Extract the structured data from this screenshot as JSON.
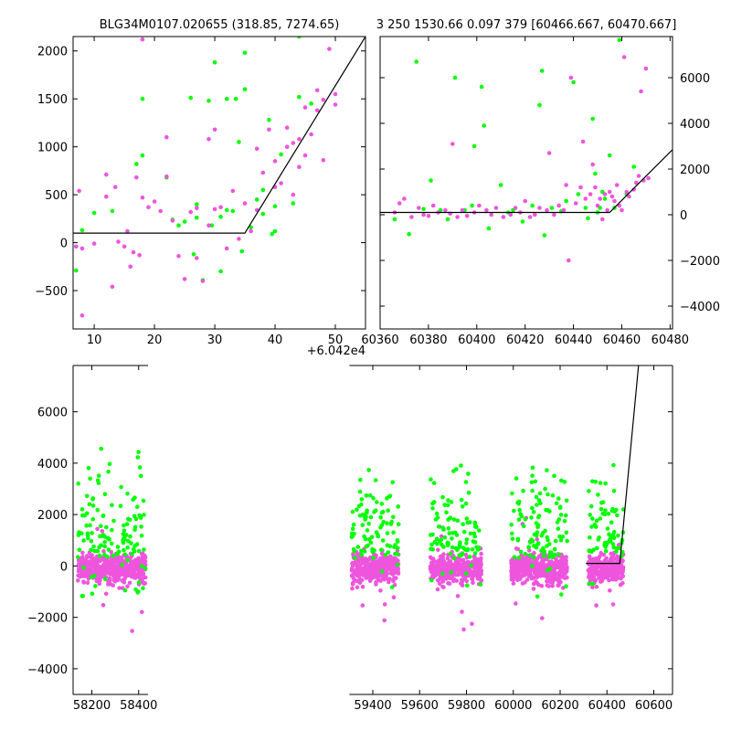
{
  "colors": {
    "green": "#00ff00",
    "magenta": "#ee55dd",
    "fit_line": "#000000"
  },
  "chart_data": [
    {
      "id": "top_left",
      "type": "scatter",
      "title": "BLG34M0107.020655 (318.85, 7274.65)",
      "xlim": [
        6.5,
        55
      ],
      "ylim": [
        -900,
        2150
      ],
      "x_offset_label": "+6.042e4",
      "xticks": [
        10,
        20,
        30,
        40,
        50
      ],
      "yticks": [
        -500,
        0,
        500,
        1000,
        1500,
        2000
      ],
      "series": [
        {
          "color": "green",
          "points": [
            [
              7,
              -290
            ],
            [
              8,
              130
            ],
            [
              10,
              310
            ],
            [
              13,
              330
            ],
            [
              17,
              820
            ],
            [
              18,
              910
            ],
            [
              18,
              1500
            ],
            [
              22,
              680
            ],
            [
              23,
              240
            ],
            [
              24,
              180
            ],
            [
              25,
              220
            ],
            [
              26,
              1510
            ],
            [
              26.5,
              -120
            ],
            [
              27,
              260
            ],
            [
              27,
              400
            ],
            [
              28,
              -390
            ],
            [
              29,
              1480
            ],
            [
              29.5,
              180
            ],
            [
              30,
              1880
            ],
            [
              31,
              270
            ],
            [
              31,
              -300
            ],
            [
              32,
              340
            ],
            [
              32,
              1500
            ],
            [
              33,
              330
            ],
            [
              33.5,
              1500
            ],
            [
              34,
              1050
            ],
            [
              34.5,
              -90
            ],
            [
              35,
              1600
            ],
            [
              35,
              1980
            ],
            [
              36,
              160
            ],
            [
              37,
              450
            ],
            [
              38,
              550
            ],
            [
              38,
              300
            ],
            [
              39,
              1280
            ],
            [
              39.5,
              90
            ],
            [
              40,
              380
            ],
            [
              40,
              120
            ],
            [
              41,
              920
            ],
            [
              43,
              410
            ],
            [
              44,
              1520
            ],
            [
              44,
              2150
            ],
            [
              46,
              1450
            ]
          ]
        },
        {
          "color": "magenta",
          "points": [
            [
              7,
              -40
            ],
            [
              7.5,
              540
            ],
            [
              8,
              -760
            ],
            [
              8,
              -60
            ],
            [
              10,
              -10
            ],
            [
              12,
              710
            ],
            [
              12,
              480
            ],
            [
              13,
              -460
            ],
            [
              13.5,
              580
            ],
            [
              14,
              10
            ],
            [
              15,
              -40
            ],
            [
              15.5,
              120
            ],
            [
              16,
              -250
            ],
            [
              16.5,
              -100
            ],
            [
              17,
              680
            ],
            [
              17.5,
              -130
            ],
            [
              18,
              2120
            ],
            [
              18,
              470
            ],
            [
              19,
              370
            ],
            [
              20,
              430
            ],
            [
              21,
              330
            ],
            [
              22,
              1100
            ],
            [
              22,
              690
            ],
            [
              23,
              230
            ],
            [
              24,
              -140
            ],
            [
              25,
              -380
            ],
            [
              26,
              320
            ],
            [
              27,
              360
            ],
            [
              27,
              -160
            ],
            [
              28,
              -400
            ],
            [
              29,
              180
            ],
            [
              29,
              1080
            ],
            [
              30,
              1180
            ],
            [
              30,
              350
            ],
            [
              31,
              370
            ],
            [
              32,
              -60
            ],
            [
              33,
              540
            ],
            [
              34,
              40
            ],
            [
              35,
              410
            ],
            [
              36,
              120
            ],
            [
              37,
              980
            ],
            [
              37,
              340
            ],
            [
              38,
              730
            ],
            [
              39,
              1180
            ],
            [
              40,
              580
            ],
            [
              40,
              850
            ],
            [
              41,
              620
            ],
            [
              42,
              1000
            ],
            [
              42,
              1200
            ],
            [
              43,
              1040
            ],
            [
              43,
              500
            ],
            [
              44,
              1080
            ],
            [
              44,
              790
            ],
            [
              45,
              1410
            ],
            [
              45,
              910
            ],
            [
              46,
              1130
            ],
            [
              47,
              1590
            ],
            [
              47,
              1380
            ],
            [
              48,
              1490
            ],
            [
              48,
              860
            ],
            [
              49,
              2020
            ],
            [
              50,
              1440
            ],
            [
              50,
              1550
            ]
          ]
        }
      ],
      "fit_line": [
        [
          6.5,
          100
        ],
        [
          35,
          100
        ],
        [
          55,
          2150
        ]
      ]
    },
    {
      "id": "top_right",
      "type": "scatter",
      "title": "3 250 1530.66 0.097 379 [60466.667, 60470.667]",
      "xlim": [
        60360,
        60481
      ],
      "ylim": [
        -5000,
        7800
      ],
      "xticks": [
        60360,
        60380,
        60400,
        60420,
        60440,
        60460,
        60480
      ],
      "yticks": [
        -4000,
        -2000,
        0,
        2000,
        4000,
        6000
      ],
      "series": [
        {
          "color": "green",
          "points": [
            [
              60366,
              -200
            ],
            [
              60372,
              -850
            ],
            [
              60375,
              6700
            ],
            [
              60378,
              250
            ],
            [
              60381,
              1500
            ],
            [
              60385,
              200
            ],
            [
              60388,
              -200
            ],
            [
              60391,
              6000
            ],
            [
              60395,
              200
            ],
            [
              60398,
              400
            ],
            [
              60399,
              3000
            ],
            [
              60402,
              5600
            ],
            [
              60403,
              3900
            ],
            [
              60405,
              -600
            ],
            [
              60410,
              1300
            ],
            [
              60413,
              100
            ],
            [
              60415,
              200
            ],
            [
              60419,
              -300
            ],
            [
              60423,
              400
            ],
            [
              60426,
              4800
            ],
            [
              60427,
              6300
            ],
            [
              60428,
              -900
            ],
            [
              60431,
              300
            ],
            [
              60435,
              150
            ],
            [
              60437,
              600
            ],
            [
              60440,
              5800
            ],
            [
              60442,
              900
            ],
            [
              60445,
              300
            ],
            [
              60446,
              -150
            ],
            [
              60448,
              4200
            ],
            [
              60449,
              1800
            ],
            [
              60450,
              100
            ],
            [
              60451,
              300
            ],
            [
              60452,
              1000
            ],
            [
              60453,
              700
            ],
            [
              60455,
              2600
            ],
            [
              60457,
              300
            ],
            [
              60459,
              7650
            ],
            [
              60462,
              900
            ],
            [
              60465,
              2100
            ]
          ]
        },
        {
          "color": "magenta",
          "points": [
            [
              60366,
              100
            ],
            [
              60368,
              500
            ],
            [
              60370,
              700
            ],
            [
              60373,
              -100
            ],
            [
              60376,
              300
            ],
            [
              60378,
              0
            ],
            [
              60380,
              -50
            ],
            [
              60382,
              400
            ],
            [
              60384,
              100
            ],
            [
              60387,
              200
            ],
            [
              60389,
              50
            ],
            [
              60390,
              3100
            ],
            [
              60392,
              -100
            ],
            [
              60394,
              200
            ],
            [
              60396,
              -50
            ],
            [
              60399,
              100
            ],
            [
              60401,
              400
            ],
            [
              60404,
              200
            ],
            [
              60406,
              0
            ],
            [
              60408,
              300
            ],
            [
              60411,
              -100
            ],
            [
              60414,
              0
            ],
            [
              60416,
              300
            ],
            [
              60418,
              100
            ],
            [
              60420,
              600
            ],
            [
              60422,
              -100
            ],
            [
              60424,
              0
            ],
            [
              60426,
              300
            ],
            [
              60429,
              200
            ],
            [
              60430,
              2700
            ],
            [
              60432,
              0
            ],
            [
              60434,
              400
            ],
            [
              60436,
              200
            ],
            [
              60437,
              1300
            ],
            [
              60438,
              -2000
            ],
            [
              60439,
              6000
            ],
            [
              60441,
              500
            ],
            [
              60443,
              1200
            ],
            [
              60444,
              3200
            ],
            [
              60445,
              700
            ],
            [
              60447,
              900
            ],
            [
              60448,
              2200
            ],
            [
              60449,
              1200
            ],
            [
              60450,
              400
            ],
            [
              60451,
              700
            ],
            [
              60452,
              -200
            ],
            [
              60453,
              900
            ],
            [
              60454,
              200
            ],
            [
              60455,
              1000
            ],
            [
              60456,
              800
            ],
            [
              60457,
              600
            ],
            [
              60458,
              1300
            ],
            [
              60459,
              400
            ],
            [
              60460,
              200
            ],
            [
              60461,
              6900
            ],
            [
              60462,
              1000
            ],
            [
              60463,
              800
            ],
            [
              60465,
              1100
            ],
            [
              60466,
              1400
            ],
            [
              60467,
              1700
            ],
            [
              60468,
              5400
            ],
            [
              60469,
              1500
            ],
            [
              60470,
              6400
            ],
            [
              60471,
              1600
            ]
          ]
        }
      ],
      "fit_line": [
        [
          60360,
          100
        ],
        [
          60455,
          100
        ],
        [
          60481,
          2850
        ]
      ]
    },
    {
      "id": "bottom",
      "type": "scatter",
      "title": "",
      "xlim": [
        58120,
        60680
      ],
      "ylim": [
        -5000,
        7800
      ],
      "xticks": [
        58200,
        58400,
        59400,
        59600,
        59800,
        60000,
        60200,
        60400,
        60600
      ],
      "yticks": [
        -4000,
        -2000,
        0,
        2000,
        4000,
        6000
      ],
      "gap": [
        58440,
        59300
      ],
      "seasons": [
        [
          58140,
          58430
        ],
        [
          59310,
          59510
        ],
        [
          59645,
          59865
        ],
        [
          59990,
          60230
        ],
        [
          60320,
          60470
        ]
      ],
      "fit_line": [
        [
          60310,
          100
        ],
        [
          60455,
          100
        ],
        [
          60535,
          7800
        ]
      ]
    }
  ]
}
